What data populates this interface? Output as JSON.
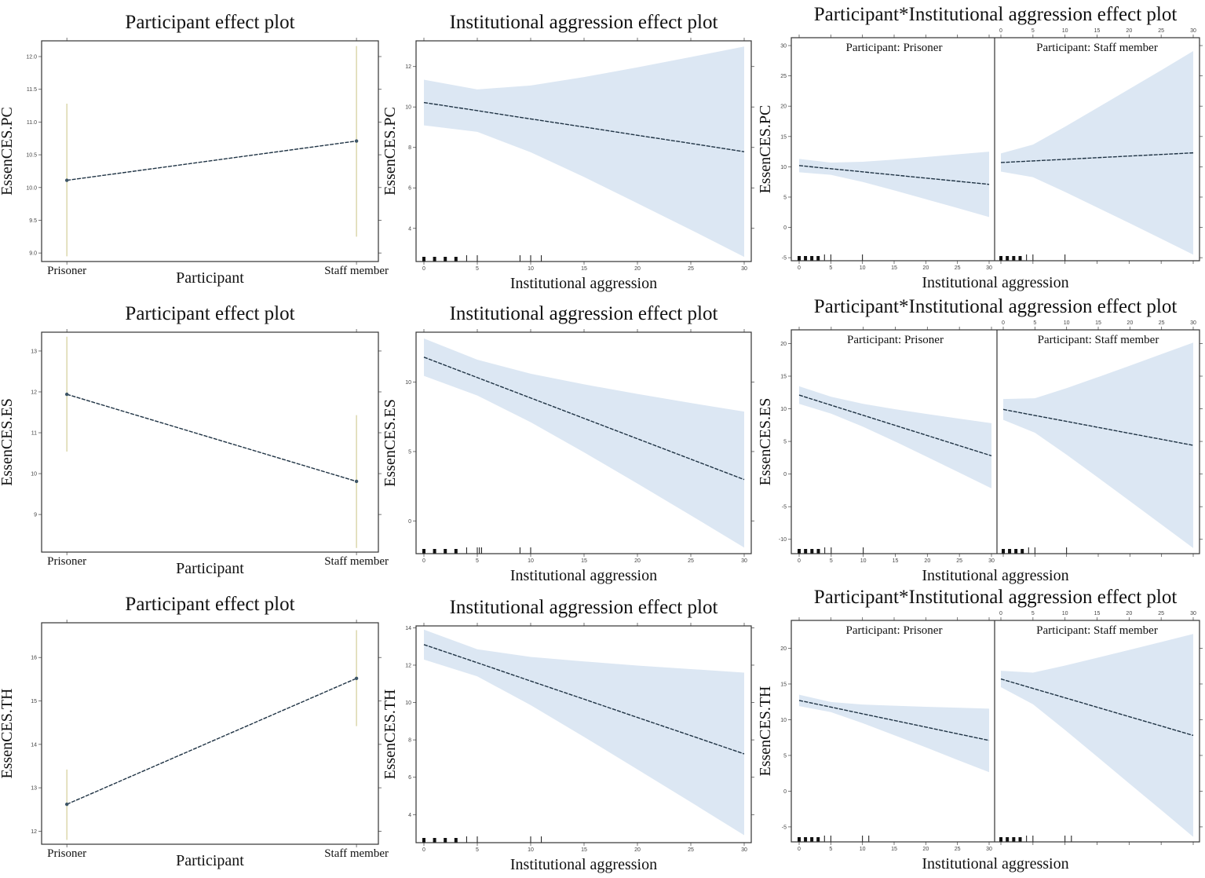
{
  "chart_data": [
    {
      "type": "line",
      "kind": "factor",
      "title": "Participant effect plot",
      "xlabel": "Participant",
      "ylabel": "EssenCES.PC",
      "categories": [
        "Prisoner",
        "Staff member"
      ],
      "values": [
        10.11,
        10.71
      ],
      "lower": [
        8.95,
        9.25
      ],
      "upper": [
        11.28,
        12.16
      ],
      "ylim": [
        8.87,
        12.24
      ],
      "ytick_labels": [
        "9.0",
        "9.5",
        "10.0",
        "10.5",
        "11.0",
        "11.5",
        "12.0"
      ],
      "colors": {
        "line": "#1f3344",
        "errbar": "#d9d5a6"
      }
    },
    {
      "type": "line",
      "kind": "effect",
      "title": "Institutional aggression effect plot",
      "xlabel": "Institutional aggression",
      "ylabel": "EssenCES.PC",
      "x": [
        0,
        5,
        10,
        15,
        20,
        25,
        30
      ],
      "fit": [
        10.22,
        9.82,
        9.41,
        9.01,
        8.6,
        8.2,
        7.79
      ],
      "upper": [
        11.35,
        10.87,
        11.06,
        11.48,
        11.96,
        12.47,
        12.99
      ],
      "lower": [
        9.09,
        8.77,
        7.76,
        6.54,
        5.24,
        3.93,
        2.59
      ],
      "ylim": [
        2.36,
        13.27
      ],
      "xlim": [
        0,
        30
      ],
      "ytick_labels": [
        "4",
        "6",
        "8",
        "10",
        "12"
      ],
      "xtick_labels": [
        "0",
        "5",
        "10",
        "15",
        "20",
        "25",
        "30"
      ],
      "rug": [
        0,
        1,
        2,
        3,
        4,
        5,
        9,
        10,
        11
      ],
      "colors": {
        "band": "#dce7f3",
        "line": "#1f3344"
      }
    },
    {
      "type": "line",
      "kind": "interaction",
      "title": "Participant*Institutional aggression effect plot",
      "xlabel": "Institutional aggression",
      "ylabel": "EssenCES.PC",
      "x": [
        0,
        5,
        10,
        15,
        20,
        25,
        30
      ],
      "ylim": [
        -5.5,
        31.3
      ],
      "xlim": [
        0,
        30
      ],
      "ytick_labels": [
        "-5",
        "0",
        "5",
        "10",
        "15",
        "20",
        "25",
        "30"
      ],
      "xtick_labels": [
        "0",
        "5",
        "10",
        "15",
        "20",
        "25",
        "30"
      ],
      "rug": [
        0,
        1,
        2,
        3,
        4,
        5,
        10
      ],
      "panels": [
        {
          "strip": "Participant: Prisoner",
          "fit": [
            10.2,
            9.68,
            9.17,
            8.65,
            8.13,
            7.62,
            7.1
          ],
          "upper": [
            11.3,
            10.69,
            10.83,
            11.19,
            11.61,
            12.05,
            12.5
          ],
          "lower": [
            9.1,
            8.67,
            7.51,
            6.11,
            4.65,
            3.19,
            1.7
          ]
        },
        {
          "strip": "Participant: Staff member",
          "fit": [
            10.7,
            10.97,
            11.23,
            11.5,
            11.77,
            12.03,
            12.3
          ],
          "upper": [
            12.2,
            13.66,
            16.61,
            19.7,
            22.81,
            25.93,
            29.1
          ],
          "lower": [
            9.2,
            8.28,
            5.85,
            3.3,
            0.73,
            -1.87,
            -4.5
          ]
        }
      ]
    },
    {
      "type": "line",
      "kind": "factor",
      "title": "Participant effect plot",
      "xlabel": "Participant",
      "ylabel": "EssenCES.ES",
      "categories": [
        "Prisoner",
        "Staff member"
      ],
      "values": [
        11.94,
        9.81
      ],
      "lower": [
        10.54,
        8.18
      ],
      "upper": [
        13.35,
        11.43
      ],
      "ylim": [
        8.08,
        13.46
      ],
      "ytick_labels": [
        "9",
        "10",
        "11",
        "12",
        "13"
      ]
    },
    {
      "type": "line",
      "kind": "effect",
      "title": "Institutional aggression effect plot",
      "xlabel": "Institutional aggression",
      "ylabel": "EssenCES.ES",
      "x": [
        0,
        5,
        10,
        15,
        20,
        25,
        30
      ],
      "fit": [
        11.8,
        10.33,
        8.86,
        7.39,
        5.92,
        4.45,
        2.98
      ],
      "upper": [
        13.15,
        11.62,
        10.61,
        9.84,
        9.15,
        8.5,
        7.88
      ],
      "lower": [
        10.45,
        9.04,
        7.11,
        4.94,
        2.69,
        0.4,
        -1.92
      ],
      "ylim": [
        -2.36,
        13.6
      ],
      "xlim": [
        0,
        30
      ],
      "ytick_labels": [
        "0",
        "5",
        "10"
      ],
      "xtick_labels": [
        "0",
        "5",
        "10",
        "15",
        "20",
        "25",
        "30"
      ],
      "rug": [
        0,
        1,
        2,
        3,
        4,
        5,
        5.2,
        5.4,
        9,
        10
      ]
    },
    {
      "type": "line",
      "kind": "interaction",
      "title": "Participant*Institutional aggression effect plot",
      "xlabel": "Institutional aggression",
      "ylabel": "EssenCES.ES",
      "x": [
        0,
        5,
        10,
        15,
        20,
        25,
        30
      ],
      "ylim": [
        -12.2,
        22.1
      ],
      "xlim": [
        0,
        30
      ],
      "ytick_labels": [
        "-10",
        "-5",
        "0",
        "5",
        "10",
        "15",
        "20"
      ],
      "xtick_labels": [
        "0",
        "5",
        "10",
        "15",
        "20",
        "25",
        "30"
      ],
      "rug": [
        0,
        1,
        2,
        3,
        4,
        5,
        10
      ],
      "panels": [
        {
          "strip": "Participant: Prisoner",
          "fit": [
            12.1,
            10.55,
            9.0,
            7.45,
            5.9,
            4.35,
            2.8
          ],
          "upper": [
            13.45,
            11.84,
            10.76,
            9.93,
            9.19,
            8.49,
            7.8
          ],
          "lower": [
            10.75,
            9.26,
            7.24,
            4.97,
            2.61,
            0.21,
            -2.2
          ]
        },
        {
          "strip": "Participant: Staff member",
          "fit": [
            9.9,
            8.98,
            8.07,
            7.15,
            6.23,
            5.32,
            4.4
          ],
          "upper": [
            11.5,
            11.62,
            13.17,
            14.87,
            16.61,
            18.38,
            20.15
          ],
          "lower": [
            8.3,
            6.34,
            2.97,
            -0.57,
            -4.15,
            -7.74,
            -11.35
          ]
        }
      ]
    },
    {
      "type": "line",
      "kind": "factor",
      "title": "Participant effect plot",
      "xlabel": "Participant",
      "ylabel": "EssenCES.TH",
      "categories": [
        "Prisoner",
        "Staff member"
      ],
      "values": [
        12.62,
        15.52
      ],
      "lower": [
        11.8,
        14.42
      ],
      "upper": [
        13.42,
        16.63
      ],
      "ylim": [
        11.7,
        16.8
      ],
      "ytick_labels": [
        "12",
        "13",
        "14",
        "15",
        "16"
      ]
    },
    {
      "type": "line",
      "kind": "effect",
      "title": "Institutional aggression effect plot",
      "xlabel": "Institutional aggression",
      "ylabel": "EssenCES.TH",
      "x": [
        0,
        5,
        10,
        15,
        20,
        25,
        30
      ],
      "fit": [
        13.1,
        12.13,
        11.15,
        10.18,
        9.2,
        8.23,
        7.25
      ],
      "upper": [
        13.9,
        12.85,
        12.44,
        12.2,
        11.98,
        11.79,
        11.6
      ],
      "lower": [
        12.3,
        11.4,
        9.86,
        8.16,
        6.42,
        4.67,
        2.9
      ],
      "ylim": [
        2.5,
        14.1
      ],
      "xlim": [
        0,
        30
      ],
      "ytick_labels": [
        "4",
        "6",
        "8",
        "10",
        "12",
        "14"
      ],
      "xtick_labels": [
        "0",
        "5",
        "10",
        "15",
        "20",
        "25",
        "30"
      ],
      "rug": [
        0,
        1,
        2,
        3,
        4,
        5,
        10,
        11
      ]
    },
    {
      "type": "line",
      "kind": "interaction",
      "title": "Participant*Institutional aggression effect plot",
      "xlabel": "Institutional aggression",
      "ylabel": "EssenCES.TH",
      "x": [
        0,
        5,
        10,
        15,
        20,
        25,
        30
      ],
      "ylim": [
        -7.1,
        23.9
      ],
      "xlim": [
        0,
        30
      ],
      "ytick_labels": [
        "-5",
        "0",
        "5",
        "10",
        "15",
        "20"
      ],
      "xtick_labels": [
        "0",
        "5",
        "10",
        "15",
        "20",
        "25",
        "30"
      ],
      "rug": [
        0,
        1,
        2,
        3,
        4,
        5,
        10,
        11
      ],
      "panels": [
        {
          "strip": "Participant: Prisoner",
          "fit": [
            12.7,
            11.77,
            10.83,
            9.9,
            8.97,
            8.03,
            7.1
          ],
          "upper": [
            13.5,
            12.48,
            12.13,
            11.96,
            11.81,
            11.68,
            11.55
          ],
          "lower": [
            11.9,
            11.06,
            9.53,
            7.84,
            6.13,
            4.38,
            2.65
          ]
        },
        {
          "strip": "Participant: Staff member",
          "fit": [
            15.7,
            14.38,
            13.07,
            11.75,
            10.43,
            9.12,
            7.8
          ],
          "upper": [
            16.85,
            16.59,
            17.58,
            18.66,
            19.77,
            20.88,
            22.0
          ],
          "lower": [
            14.55,
            12.17,
            8.56,
            4.84,
            1.09,
            -2.64,
            -6.4
          ]
        }
      ]
    }
  ]
}
